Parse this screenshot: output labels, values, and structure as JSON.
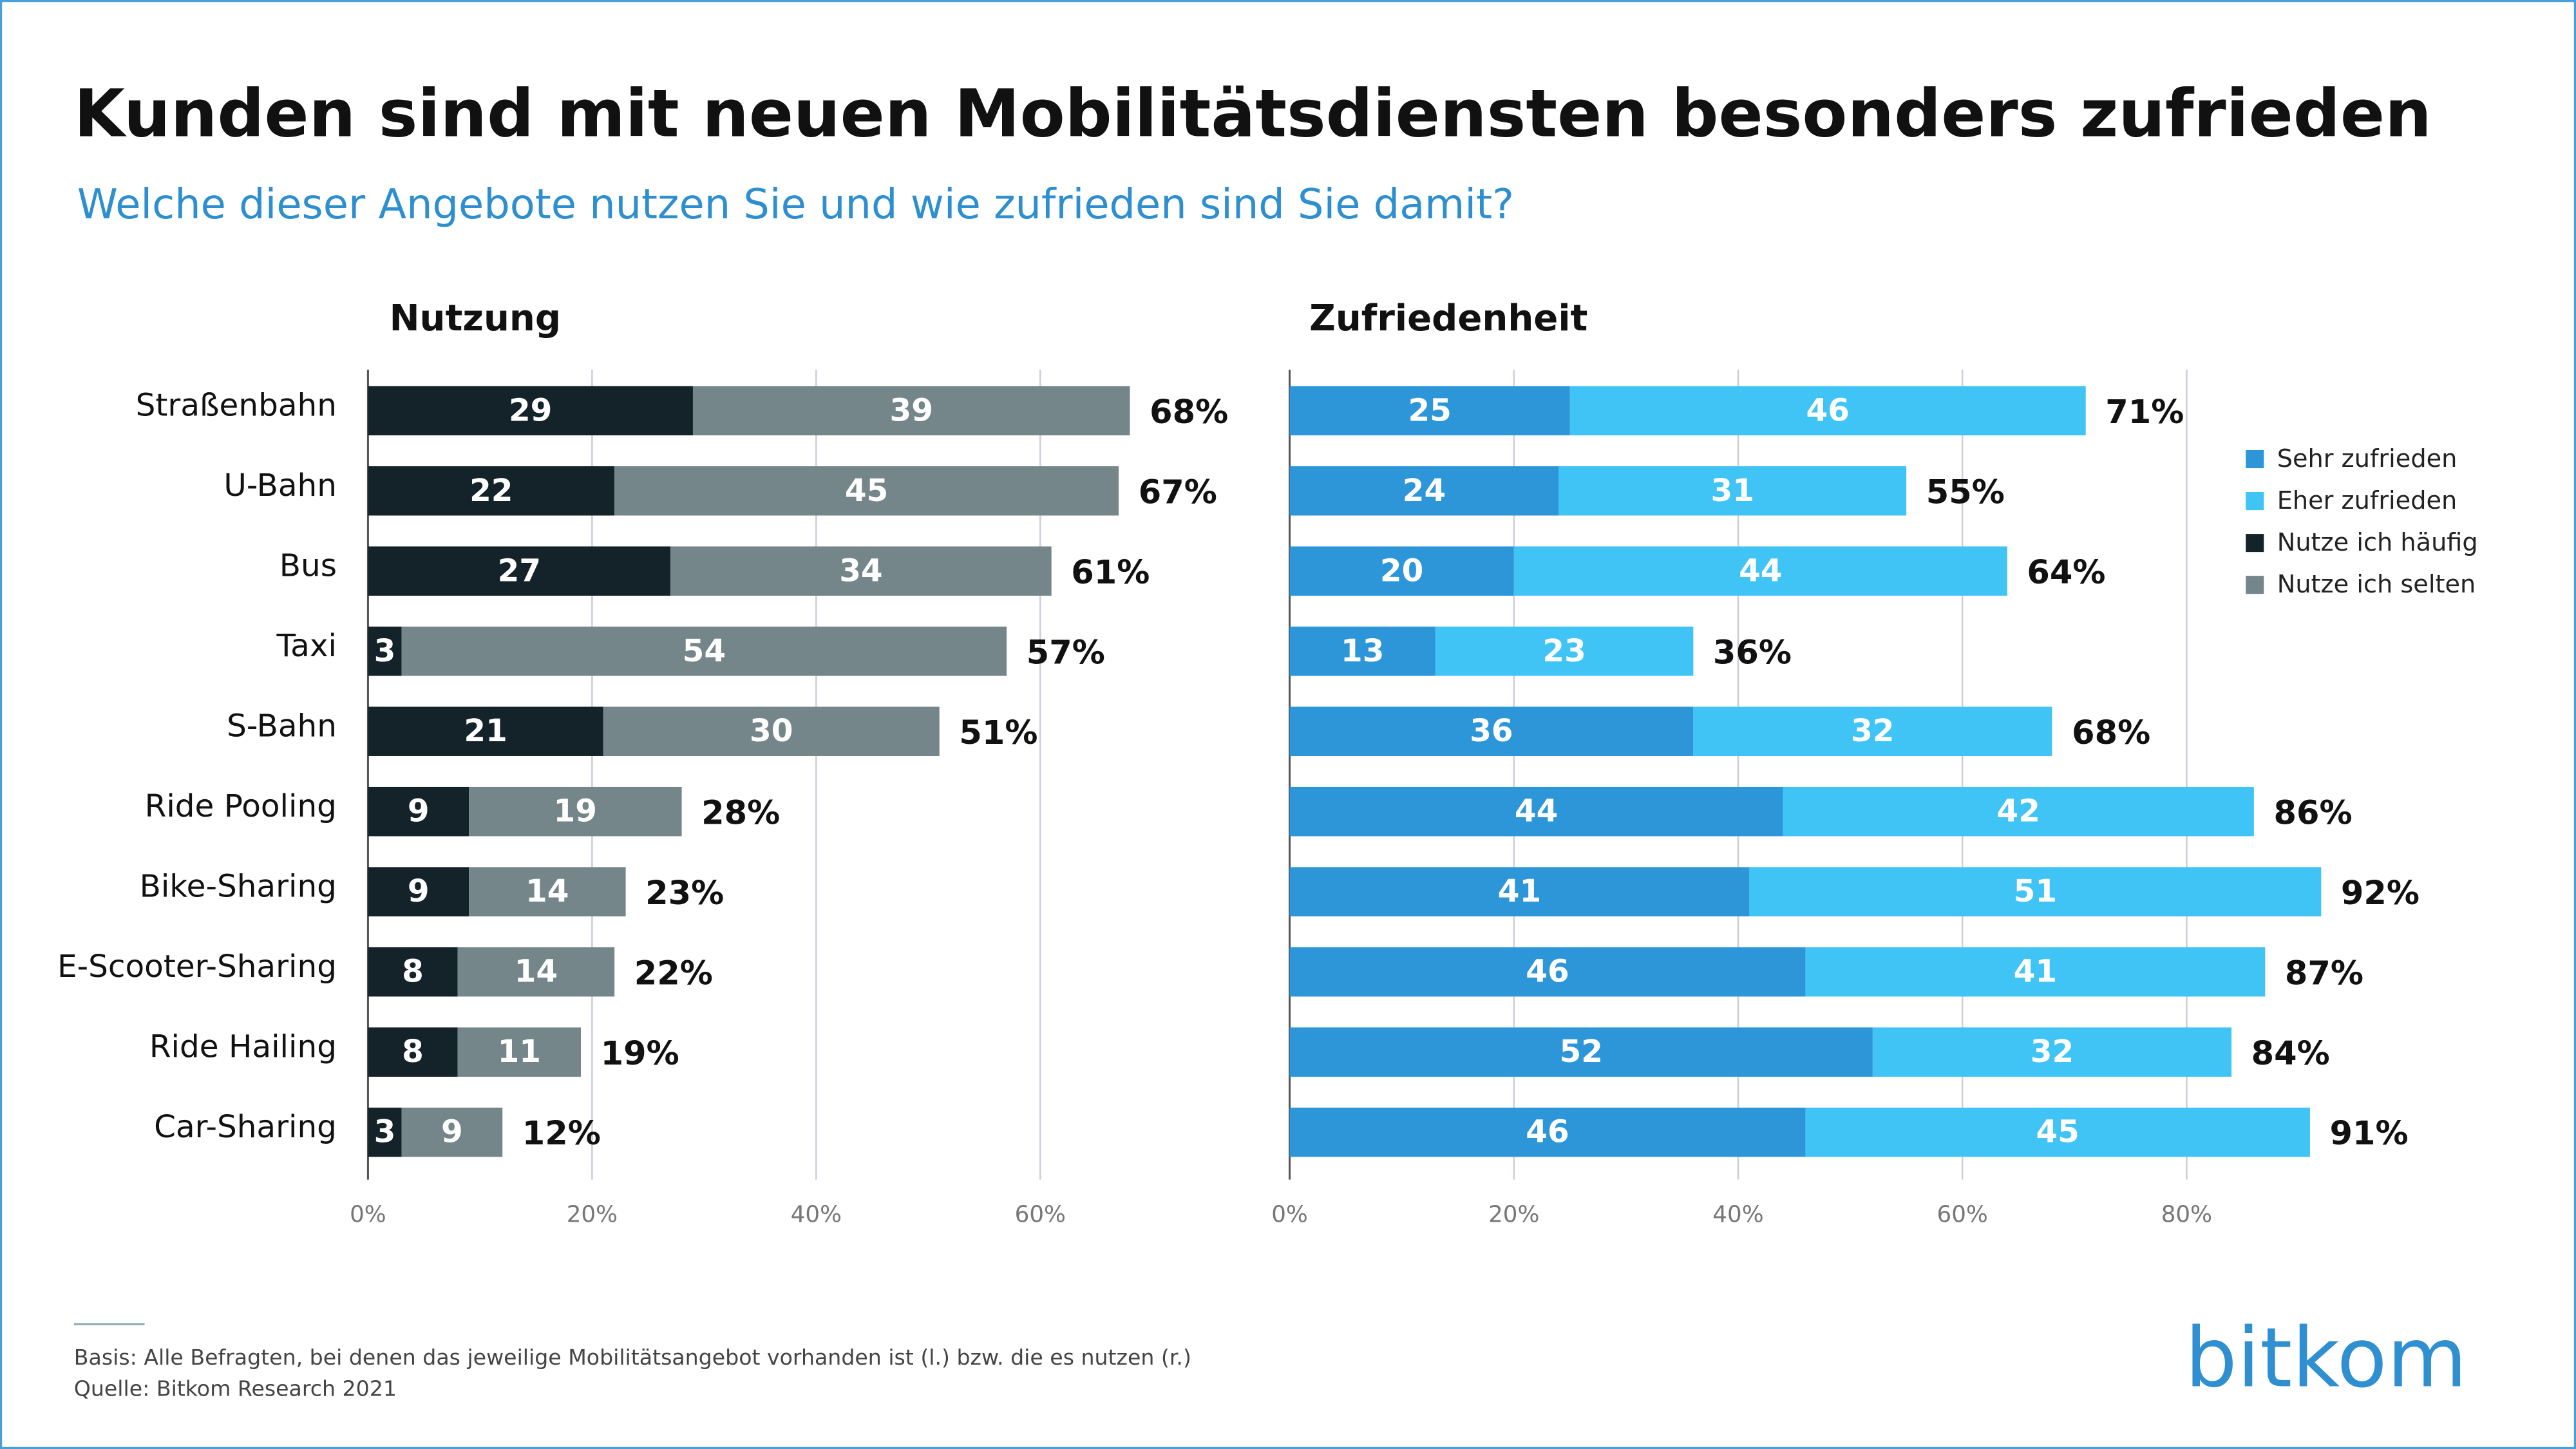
{
  "title": "Kunden sind mit neuen Mobilitätsdiensten besonders zufrieden",
  "subtitle": "Welche dieser Angebote nutzen Sie und wie zufrieden sind Sie damit?",
  "notes": [
    "Basis: Alle Befragten, bei denen das jeweilige Mobilitätsangebot vorhanden ist (l.) bzw. die es nutzen (r.)",
    "Quelle: Bitkom Research 2021"
  ],
  "logo": "bitkom",
  "chart_data": [
    {
      "type": "stacked_bar_horizontal",
      "title": "Nutzung",
      "categories": [
        "Straßenbahn",
        "U-Bahn",
        "Bus",
        "Taxi",
        "S-Bahn",
        "Ride Pooling",
        "Bike-Sharing",
        "E-Scooter-Sharing",
        "Ride Hailing",
        "Car-Sharing"
      ],
      "series": [
        {
          "name": "Nutze ich häufig",
          "color": "#14232a",
          "values": [
            29,
            22,
            27,
            3,
            21,
            9,
            9,
            8,
            8,
            3
          ]
        },
        {
          "name": "Nutze ich selten",
          "color": "#75868a",
          "values": [
            39,
            45,
            34,
            54,
            30,
            19,
            14,
            14,
            11,
            9
          ]
        }
      ],
      "totals": [
        68,
        67,
        61,
        57,
        51,
        28,
        23,
        22,
        19,
        12
      ],
      "total_labels": [
        "68%",
        "67%",
        "61%",
        "57%",
        "51%",
        "28%",
        "23%",
        "22%",
        "19%",
        "12%"
      ],
      "xlim": [
        0,
        70
      ],
      "xticks": [
        {
          "value": 0,
          "label": "0%"
        },
        {
          "value": 20,
          "label": "20%"
        },
        {
          "value": 40,
          "label": "40%"
        },
        {
          "value": 60,
          "label": "60%"
        }
      ],
      "grid": true
    },
    {
      "type": "stacked_bar_horizontal",
      "title": "Zufriedenheit",
      "categories": [
        "Straßenbahn",
        "U-Bahn",
        "Bus",
        "Taxi",
        "S-Bahn",
        "Ride Pooling",
        "Bike-Sharing",
        "E-Scooter-Sharing",
        "Ride Hailing",
        "Car-Sharing"
      ],
      "series": [
        {
          "name": "Sehr zufrieden",
          "color": "#2d96d9",
          "values": [
            25,
            24,
            20,
            13,
            36,
            44,
            41,
            46,
            52,
            46
          ]
        },
        {
          "name": "Eher zufrieden",
          "color": "#40c4f5",
          "values": [
            46,
            31,
            44,
            23,
            32,
            42,
            51,
            41,
            32,
            45
          ]
        }
      ],
      "totals": [
        71,
        55,
        64,
        36,
        68,
        86,
        92,
        87,
        84,
        91
      ],
      "total_labels": [
        "71%",
        "55%",
        "64%",
        "36%",
        "68%",
        "86%",
        "92%",
        "87%",
        "84%",
        "91%"
      ],
      "xlim": [
        0,
        95
      ],
      "xticks": [
        {
          "value": 0,
          "label": "0%"
        },
        {
          "value": 20,
          "label": "20%"
        },
        {
          "value": 40,
          "label": "40%"
        },
        {
          "value": 60,
          "label": "60%"
        },
        {
          "value": 80,
          "label": "80%"
        }
      ],
      "grid": true
    }
  ]
}
